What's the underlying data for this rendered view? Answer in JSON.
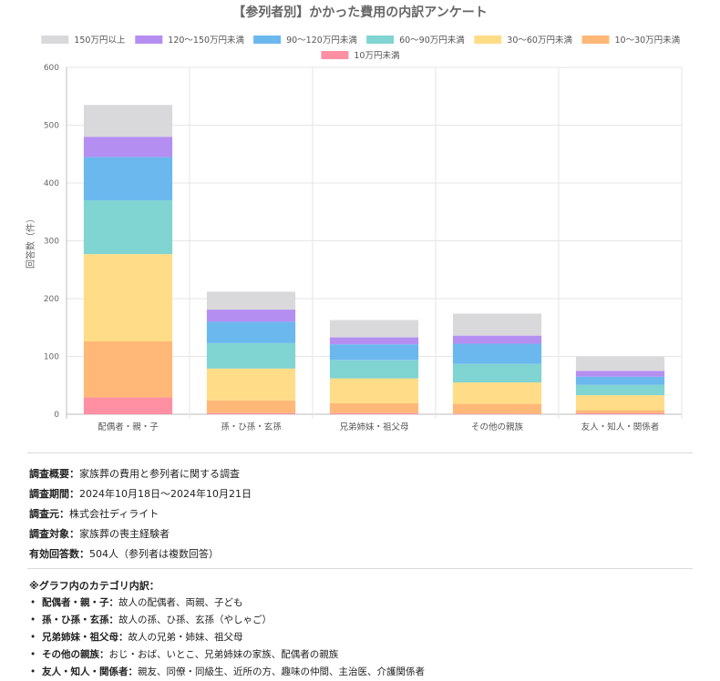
{
  "chart_data": {
    "type": "bar",
    "stacked": true,
    "title": "【参列者別】かかった費用の内訳アンケート",
    "ylabel": "回答数（件）",
    "xlabel": "",
    "ylim": [
      0,
      600
    ],
    "yticks": [
      0,
      100,
      200,
      300,
      400,
      500,
      600
    ],
    "grid": true,
    "legend_position": "top",
    "categories": [
      "配偶者・親・子",
      "孫・ひ孫・玄孫",
      "兄弟姉妹・祖父母",
      "その他の親族",
      "友人・知人・関係者"
    ],
    "series": [
      {
        "name": "10万円未満",
        "color": "#ff8fa3",
        "values": [
          29,
          2,
          2,
          1,
          2
        ]
      },
      {
        "name": "10〜30万円未満",
        "color": "#ffb877",
        "values": [
          97,
          22,
          17,
          17,
          5
        ]
      },
      {
        "name": "30〜60万円未満",
        "color": "#ffdd88",
        "values": [
          151,
          55,
          43,
          37,
          26
        ]
      },
      {
        "name": "60〜90万円未満",
        "color": "#80d4d2",
        "values": [
          93,
          44,
          32,
          32,
          18
        ]
      },
      {
        "name": "90〜120万円未満",
        "color": "#6bb8ee",
        "values": [
          75,
          37,
          27,
          35,
          14
        ]
      },
      {
        "name": "120〜150万円未満",
        "color": "#b58ef2",
        "values": [
          35,
          21,
          12,
          14,
          10
        ]
      },
      {
        "name": "150万円以上",
        "color": "#d9d9dc",
        "values": [
          55,
          31,
          30,
          38,
          25
        ]
      }
    ]
  },
  "survey": [
    {
      "label": "調査概要：",
      "value": "家族葬の費用と参列者に関する調査"
    },
    {
      "label": "調査期間：",
      "value": "2024年10月18日〜2024年10月21日"
    },
    {
      "label": "調査元：",
      "value": "株式会社ディライト"
    },
    {
      "label": "調査対象：",
      "value": "家族葬の喪主経験者"
    },
    {
      "label": "有効回答数：",
      "value": "504人（参列者は複数回答）"
    }
  ],
  "categories_note": {
    "title": "※グラフ内のカテゴリ内訳：",
    "items": [
      {
        "label": "配偶者・親・子：",
        "value": "故人の配偶者、両親、子ども"
      },
      {
        "label": "孫・ひ孫・玄孫：",
        "value": "故人の孫、ひ孫、玄孫（やしゃご）"
      },
      {
        "label": "兄弟姉妹・祖父母：",
        "value": "故人の兄弟・姉妹、祖父母"
      },
      {
        "label": "その他の親族：",
        "value": "おじ・おば、いとこ、兄弟姉妹の家族、配偶者の親族"
      },
      {
        "label": "友人・知人・関係者：",
        "value": "親友、同僚・同級生、近所の方、趣味の仲間、主治医、介護関係者"
      }
    ]
  }
}
